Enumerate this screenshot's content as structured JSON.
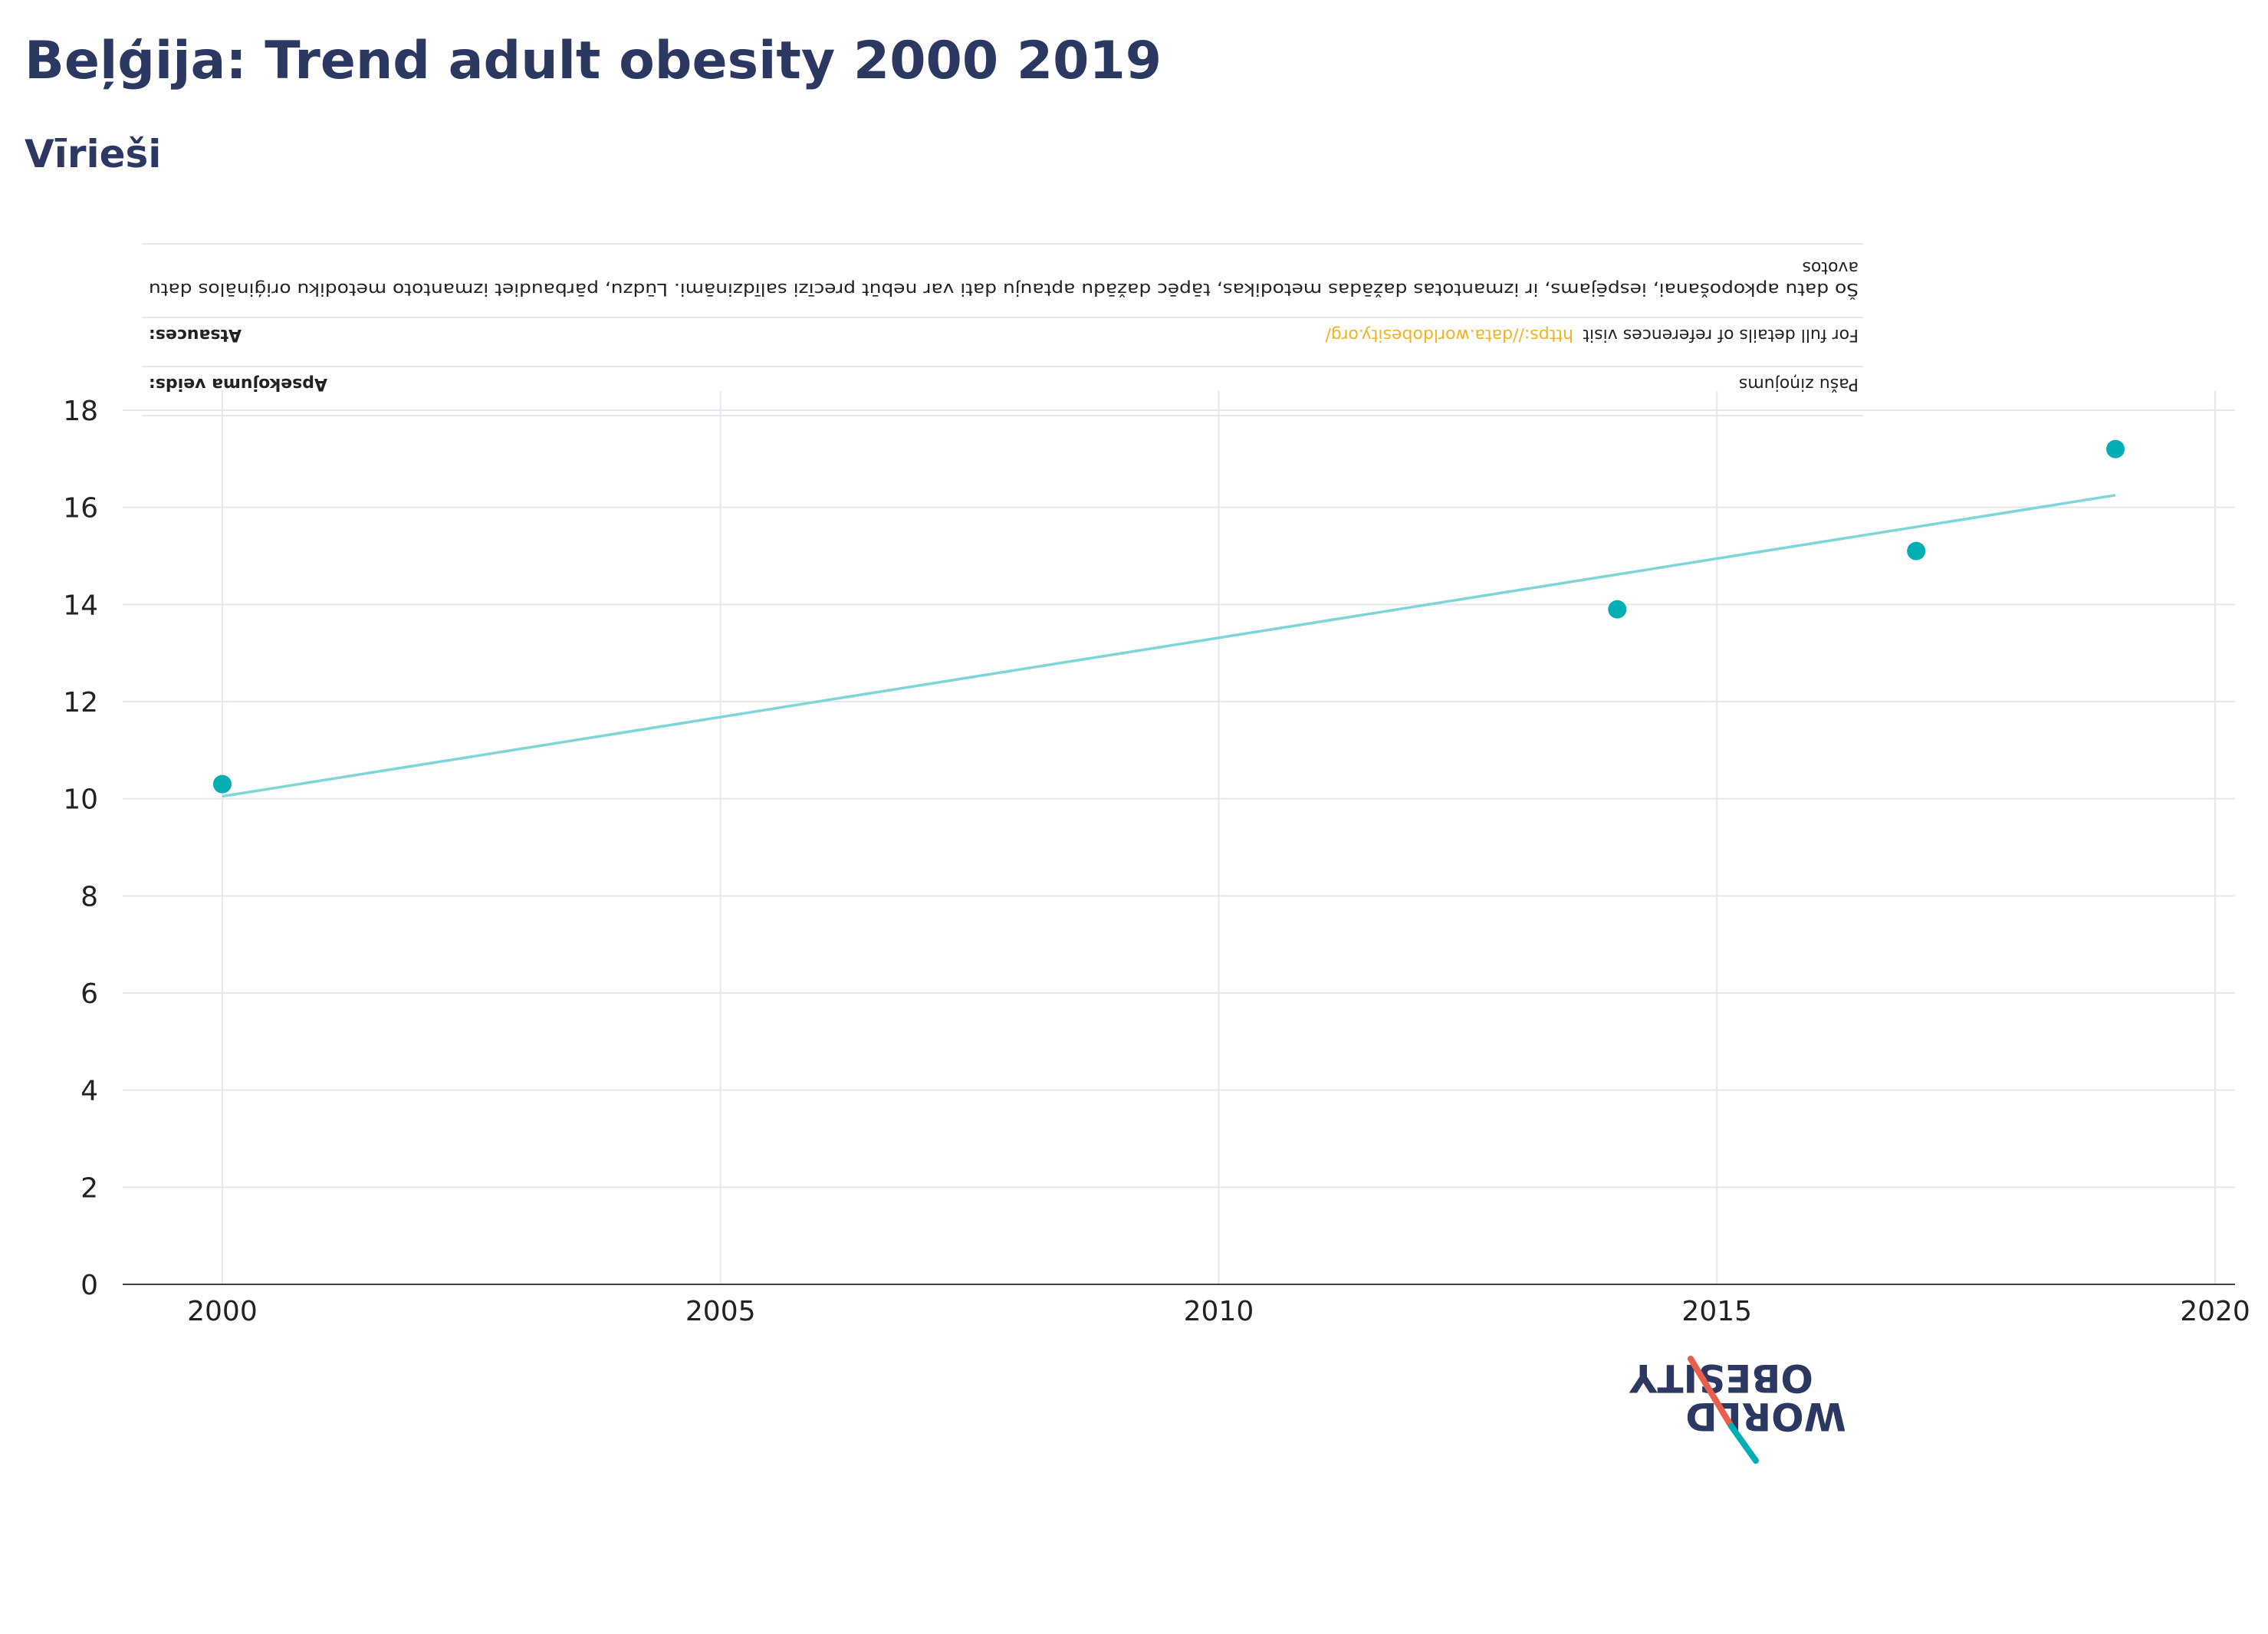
{
  "header": {
    "title": "Beļģija: Trend adult obesity 2000 2019",
    "subtitle": "Vīrieši"
  },
  "notes": {
    "survey_type_label": "Apsekojuma veids:",
    "survey_type_value": "Pašu ziņojums",
    "references_label": "Atsauces:",
    "references_text": "For full details of references visit",
    "references_link": "https://data.worldobesity.org/",
    "disclaimer_line1": "Šo datu apkopošanai, iespējams, ir izmantotas dažādas metodikas, tāpēc dažādu aptauju dati var nebūt precīzi salīdzināmi. Lūdzu, pārbaudiet izmantoto metodiku oriģinālos datu",
    "disclaimer_line2": "avotos"
  },
  "logo": {
    "line1": "OBESITY",
    "line2": "WORLD"
  },
  "colors": {
    "title": "#2b3862",
    "point": "#00aeb3",
    "trend": "#7fd6d8",
    "grid": "#e6e6ef",
    "link": "#f0b323",
    "logo_red": "#e8604c",
    "logo_teal": "#00aeb3"
  },
  "chart_data": {
    "type": "scatter",
    "x": [
      2000,
      2014,
      2017,
      2019
    ],
    "y": [
      10.3,
      13.9,
      15.1,
      17.2
    ],
    "trendline": {
      "x": [
        2000,
        2019
      ],
      "y": [
        10.05,
        16.25
      ]
    },
    "xlim": [
      1999,
      2020.2
    ],
    "ylim": [
      0,
      18
    ],
    "xticks": [
      2000,
      2005,
      2010,
      2015,
      2020
    ],
    "yticks": [
      0,
      2,
      4,
      6,
      8,
      10,
      12,
      14,
      16,
      18
    ],
    "grid": true,
    "legend": "none"
  }
}
